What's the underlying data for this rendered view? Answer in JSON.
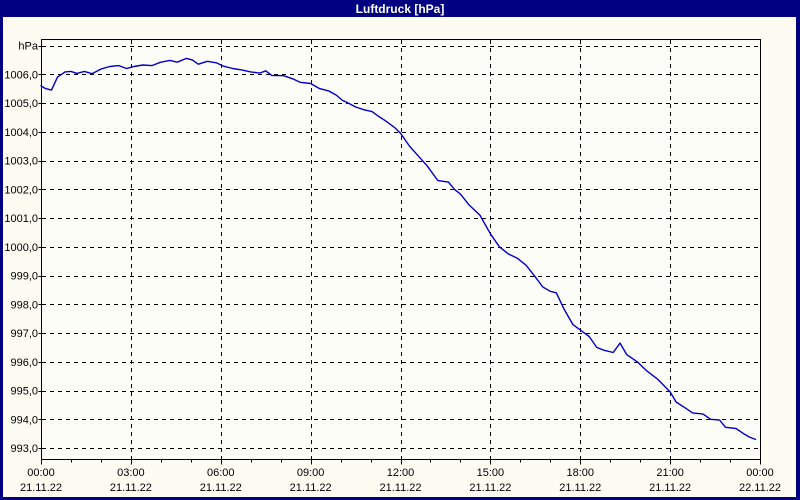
{
  "window": {
    "title": "Luftdruck [hPa]"
  },
  "chart_data": {
    "type": "line",
    "title": "Luftdruck [hPa]",
    "unit_label": "hPa",
    "grid": "dashed",
    "legend_position": "none",
    "colors": {
      "titlebar": "#000080",
      "title_text": "#ffffff",
      "window_background": "#fcfcf3",
      "plot_background": "#fdfdf7",
      "frame": "#000000",
      "grid": "#000000",
      "line": "#0000cc"
    },
    "x_axis": {
      "range_hours": [
        0,
        24
      ],
      "minor_tick_every_hours": 1,
      "major_tick_every_hours": 3,
      "ticks": [
        {
          "hour": 0,
          "time": "00:00",
          "date": "21.11.22"
        },
        {
          "hour": 3,
          "time": "03:00",
          "date": "21.11.22"
        },
        {
          "hour": 6,
          "time": "06:00",
          "date": "21.11.22"
        },
        {
          "hour": 9,
          "time": "09:00",
          "date": "21.11.22"
        },
        {
          "hour": 12,
          "time": "12:00",
          "date": "21.11.22"
        },
        {
          "hour": 15,
          "time": "15:00",
          "date": "21.11.22"
        },
        {
          "hour": 18,
          "time": "18:00",
          "date": "21.11.22"
        },
        {
          "hour": 21,
          "time": "21:00",
          "date": "21.11.22"
        },
        {
          "hour": 24,
          "time": "00:00",
          "date": "22.11.22"
        }
      ]
    },
    "y_axis": {
      "min": 993,
      "max": 1007,
      "step": 1,
      "top_gridline_value": 1007,
      "tick_values": [
        1006,
        1005,
        1004,
        1003,
        1002,
        1001,
        1000,
        999,
        998,
        997,
        996,
        995,
        994,
        993
      ],
      "tick_labels": [
        "1006,0",
        "1005,0",
        "1004,0",
        "1003,0",
        "1002,0",
        "1001,0",
        "1000,0",
        "999,0",
        "998,0",
        "997,0",
        "996,0",
        "995,0",
        "994,0",
        "993,0"
      ]
    },
    "series": [
      {
        "name": "Luftdruck",
        "color": "#0000cc",
        "points": [
          [
            0.0,
            1005.6
          ],
          [
            0.15,
            1005.5
          ],
          [
            0.35,
            1005.45
          ],
          [
            0.55,
            1005.9
          ],
          [
            0.8,
            1006.08
          ],
          [
            1.0,
            1006.1
          ],
          [
            1.2,
            1006.03
          ],
          [
            1.45,
            1006.1
          ],
          [
            1.7,
            1006.02
          ],
          [
            2.0,
            1006.18
          ],
          [
            2.3,
            1006.27
          ],
          [
            2.6,
            1006.3
          ],
          [
            2.85,
            1006.2
          ],
          [
            3.1,
            1006.27
          ],
          [
            3.4,
            1006.32
          ],
          [
            3.7,
            1006.3
          ],
          [
            4.0,
            1006.42
          ],
          [
            4.3,
            1006.48
          ],
          [
            4.55,
            1006.42
          ],
          [
            4.85,
            1006.55
          ],
          [
            5.05,
            1006.5
          ],
          [
            5.25,
            1006.35
          ],
          [
            5.55,
            1006.45
          ],
          [
            5.85,
            1006.4
          ],
          [
            6.1,
            1006.28
          ],
          [
            6.4,
            1006.2
          ],
          [
            6.7,
            1006.15
          ],
          [
            7.0,
            1006.08
          ],
          [
            7.3,
            1006.04
          ],
          [
            7.5,
            1006.12
          ],
          [
            7.7,
            1005.96
          ],
          [
            8.1,
            1005.95
          ],
          [
            8.4,
            1005.84
          ],
          [
            8.65,
            1005.72
          ],
          [
            9.0,
            1005.68
          ],
          [
            9.3,
            1005.5
          ],
          [
            9.6,
            1005.42
          ],
          [
            9.85,
            1005.28
          ],
          [
            10.05,
            1005.1
          ],
          [
            10.25,
            1005.0
          ],
          [
            10.5,
            1004.86
          ],
          [
            10.8,
            1004.76
          ],
          [
            11.05,
            1004.7
          ],
          [
            11.25,
            1004.55
          ],
          [
            11.5,
            1004.38
          ],
          [
            11.8,
            1004.15
          ],
          [
            12.0,
            1003.95
          ],
          [
            12.3,
            1003.5
          ],
          [
            12.6,
            1003.15
          ],
          [
            12.9,
            1002.8
          ],
          [
            13.25,
            1002.3
          ],
          [
            13.6,
            1002.25
          ],
          [
            13.8,
            1002.0
          ],
          [
            14.0,
            1001.83
          ],
          [
            14.3,
            1001.44
          ],
          [
            14.65,
            1001.1
          ],
          [
            15.0,
            1000.45
          ],
          [
            15.3,
            1000.0
          ],
          [
            15.6,
            999.75
          ],
          [
            15.9,
            999.6
          ],
          [
            16.2,
            999.35
          ],
          [
            16.5,
            998.95
          ],
          [
            16.75,
            998.6
          ],
          [
            17.0,
            998.45
          ],
          [
            17.2,
            998.4
          ],
          [
            17.45,
            997.85
          ],
          [
            17.75,
            997.3
          ],
          [
            18.0,
            997.1
          ],
          [
            18.3,
            996.88
          ],
          [
            18.55,
            996.5
          ],
          [
            18.8,
            996.4
          ],
          [
            19.1,
            996.32
          ],
          [
            19.33,
            996.65
          ],
          [
            19.55,
            996.25
          ],
          [
            19.9,
            996.0
          ],
          [
            20.2,
            995.7
          ],
          [
            20.6,
            995.38
          ],
          [
            21.0,
            994.95
          ],
          [
            21.2,
            994.6
          ],
          [
            21.5,
            994.4
          ],
          [
            21.75,
            994.22
          ],
          [
            22.1,
            994.18
          ],
          [
            22.35,
            994.0
          ],
          [
            22.65,
            993.97
          ],
          [
            22.85,
            993.72
          ],
          [
            23.2,
            993.68
          ],
          [
            23.45,
            993.5
          ],
          [
            23.65,
            993.38
          ],
          [
            23.85,
            993.3
          ]
        ]
      }
    ]
  }
}
